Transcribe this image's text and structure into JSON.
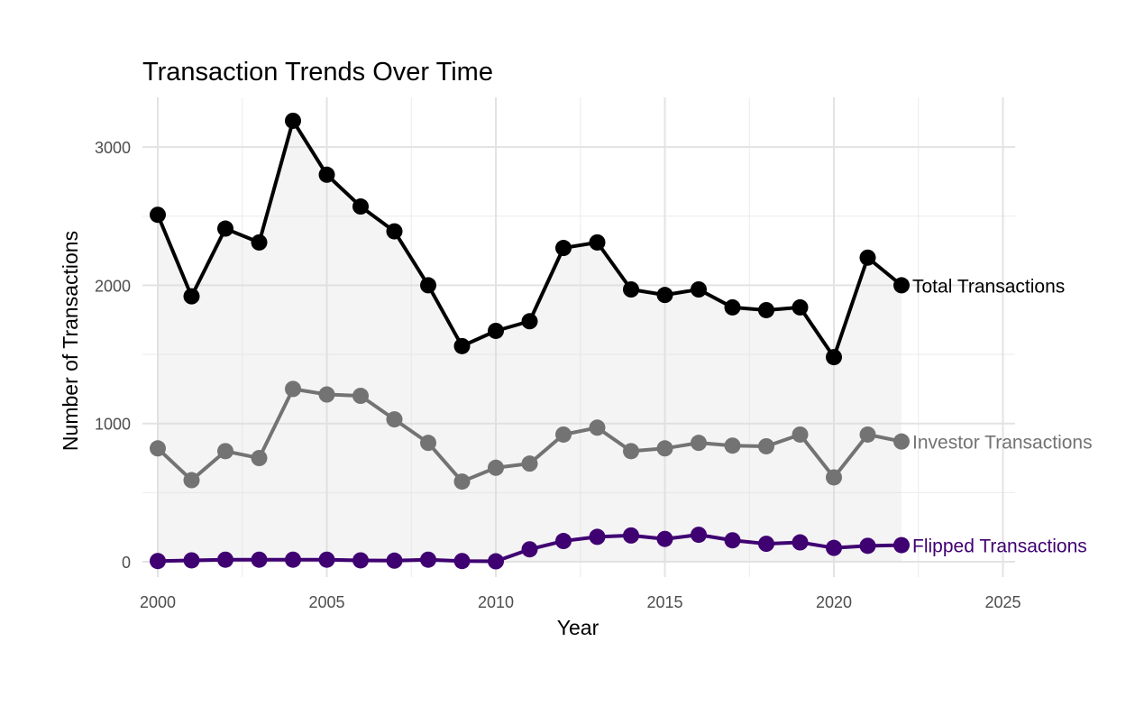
{
  "chart_data": {
    "type": "line",
    "title": "Transaction Trends Over Time",
    "xlabel": "Year",
    "ylabel": "Number of Transactions",
    "xlim": [
      2000,
      2025
    ],
    "ylim": [
      0,
      3200
    ],
    "x_ticks": [
      2000,
      2005,
      2010,
      2015,
      2020,
      2025
    ],
    "y_ticks": [
      0,
      1000,
      2000,
      3000
    ],
    "grid": true,
    "legend": "direct labels at line ends (right)",
    "shaded_area_under": "Total Transactions",
    "x": [
      2000,
      2001,
      2002,
      2003,
      2004,
      2005,
      2006,
      2007,
      2008,
      2009,
      2010,
      2011,
      2012,
      2013,
      2014,
      2015,
      2016,
      2017,
      2018,
      2019,
      2020,
      2021,
      2022
    ],
    "series": [
      {
        "name": "Total Transactions",
        "color": "#000000",
        "values": [
          2510,
          1920,
          2410,
          2310,
          3190,
          2800,
          2570,
          2390,
          2000,
          1560,
          1670,
          1740,
          2270,
          2310,
          1970,
          1930,
          1970,
          1840,
          1820,
          1840,
          1480,
          2200,
          2000
        ]
      },
      {
        "name": "Investor Transactions",
        "color": "#737373",
        "values": [
          820,
          590,
          800,
          750,
          1250,
          1210,
          1200,
          1030,
          860,
          580,
          680,
          710,
          920,
          970,
          800,
          820,
          860,
          840,
          835,
          920,
          610,
          920,
          870
        ]
      },
      {
        "name": "Flipped Transactions",
        "color": "#3f0072",
        "values": [
          5,
          10,
          15,
          15,
          15,
          15,
          10,
          8,
          15,
          5,
          3,
          90,
          150,
          180,
          190,
          165,
          195,
          155,
          130,
          140,
          100,
          115,
          120
        ]
      }
    ]
  }
}
